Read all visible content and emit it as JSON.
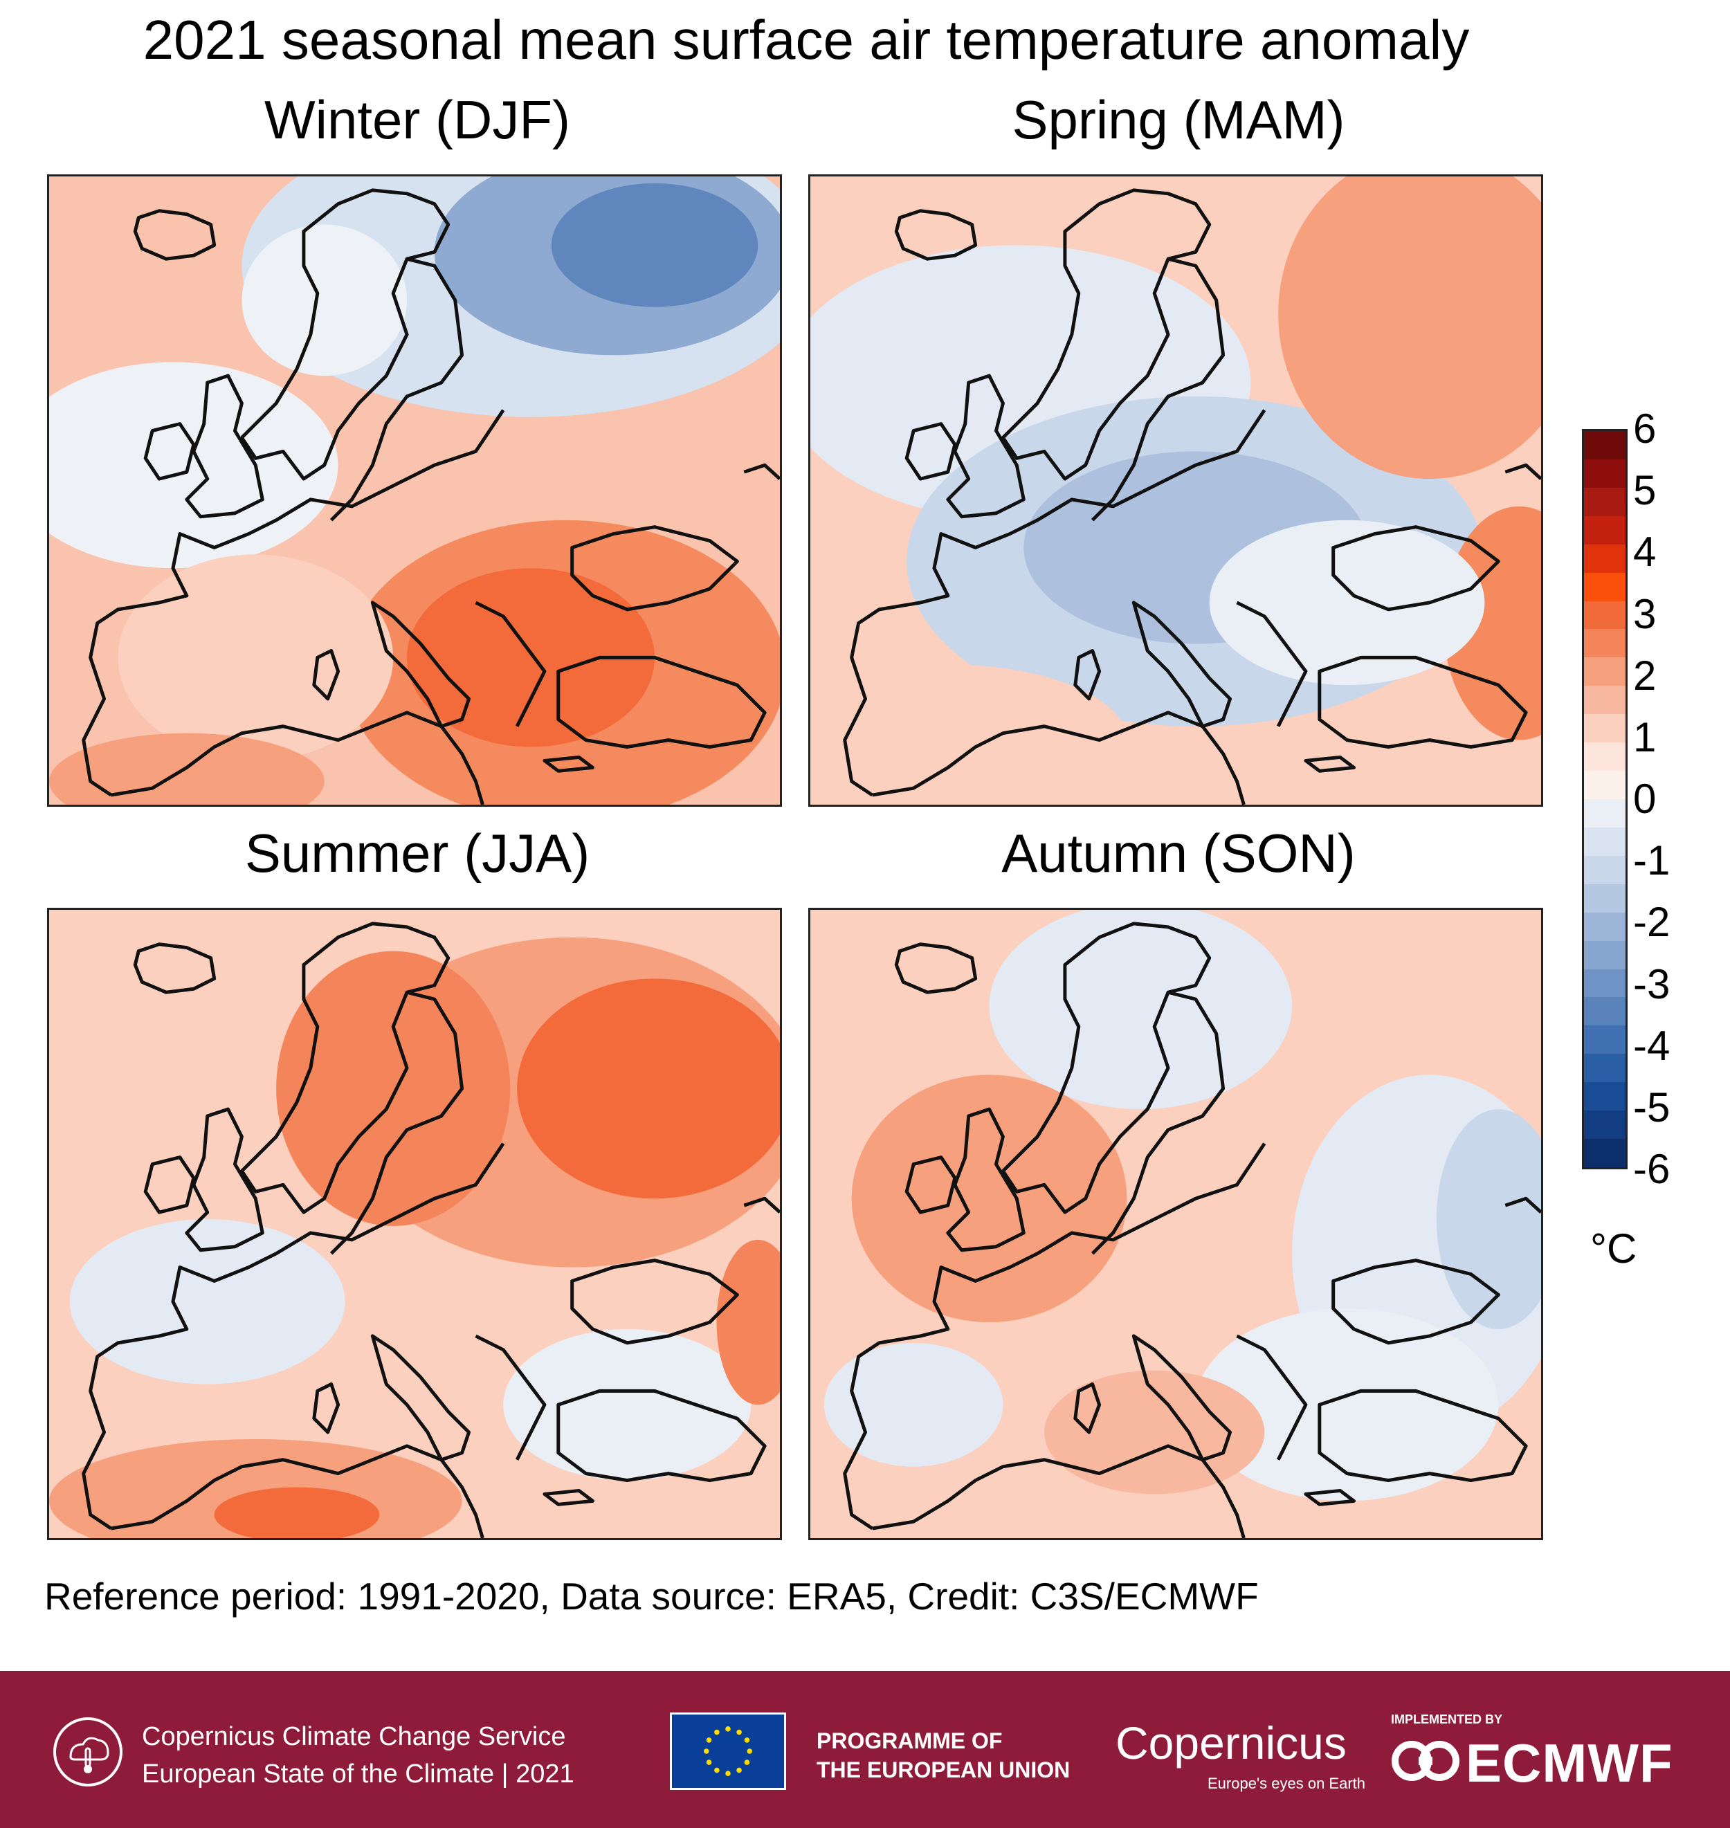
{
  "title": "2021 seasonal mean surface air temperature anomaly",
  "panels": [
    {
      "title": "Winter (DJF)"
    },
    {
      "title": "Spring (MAM)"
    },
    {
      "title": "Summer (JJA)"
    },
    {
      "title": "Autumn (SON)"
    }
  ],
  "colorbar": {
    "unit": "°C",
    "ticks": [
      "6",
      "5",
      "4",
      "3",
      "2",
      "1",
      "0",
      "-1",
      "-2",
      "-3",
      "-4",
      "-5",
      "-6"
    ],
    "colors": [
      "#6e0a0a",
      "#8e0e0e",
      "#a81a12",
      "#c4220f",
      "#e0330c",
      "#fb4f0c",
      "#f06a3a",
      "#f4845a",
      "#f7a07e",
      "#f8b8a0",
      "#fbd0bf",
      "#fde5db",
      "#fdf1ec",
      "#eaeff6",
      "#dae4f0",
      "#c8d7ea",
      "#b4c8e2",
      "#9db6d8",
      "#86a5cf",
      "#6f93c4",
      "#5a82bb",
      "#4171b2",
      "#2a5ea5",
      "#1a4c95",
      "#123d82",
      "#0c2e6b"
    ]
  },
  "caption": "Reference period: 1991-2020, Data source: ERA5, Credit: C3S/ECMWF",
  "footer": {
    "c3s_line1": "Copernicus Climate Change Service",
    "c3s_line2": "European State of the Climate | 2021",
    "programme_line1": "PROGRAMME OF",
    "programme_line2": "THE EUROPEAN UNION",
    "copernicus": "opernicus",
    "copernicus_c": "C",
    "copernicus_tagline": "Europe's eyes on Earth",
    "implemented_by": "IMPLEMENTED BY",
    "ecmwf": "ECMWF"
  }
}
